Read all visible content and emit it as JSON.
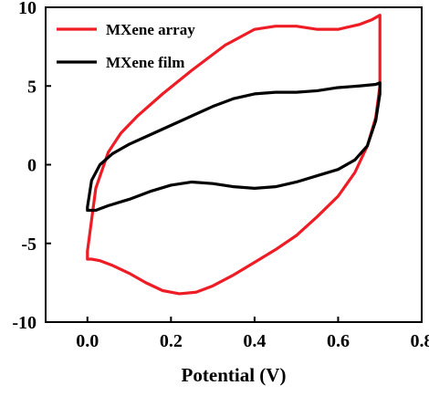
{
  "chart_data": {
    "type": "line",
    "title": "",
    "xlabel": "Potential (V)",
    "ylabel": "",
    "xlim": [
      -0.1,
      0.8
    ],
    "ylim": [
      -10,
      10
    ],
    "grid": false,
    "legend_position": "top-left",
    "x_ticks": [
      {
        "value": 0.0,
        "label": "0.0"
      },
      {
        "value": 0.2,
        "label": "0.2"
      },
      {
        "value": 0.4,
        "label": "0.4"
      },
      {
        "value": 0.6,
        "label": "0.6"
      },
      {
        "value": 0.8,
        "label": "0.8"
      }
    ],
    "y_ticks": [
      {
        "value": 10,
        "label": "10"
      },
      {
        "value": 5,
        "label": "5"
      },
      {
        "value": 0,
        "label": "0"
      },
      {
        "value": -5,
        "label": "-5"
      },
      {
        "value": -10,
        "label": "-10"
      }
    ],
    "series": [
      {
        "name": "MXene array",
        "color": "#ee1c25",
        "closed": true,
        "x": [
          0.0,
          0.02,
          0.05,
          0.08,
          0.12,
          0.18,
          0.25,
          0.33,
          0.4,
          0.45,
          0.5,
          0.55,
          0.6,
          0.65,
          0.68,
          0.7,
          0.7,
          0.7,
          0.69,
          0.67,
          0.64,
          0.6,
          0.55,
          0.5,
          0.45,
          0.4,
          0.35,
          0.3,
          0.26,
          0.22,
          0.18,
          0.14,
          0.1,
          0.06,
          0.03,
          0.01,
          0.0,
          0.0
        ],
        "y": [
          -5.5,
          -1.5,
          0.8,
          2.0,
          3.1,
          4.5,
          6.0,
          7.6,
          8.6,
          8.8,
          8.8,
          8.6,
          8.6,
          8.9,
          9.2,
          9.5,
          7.5,
          5.0,
          3.0,
          1.2,
          -0.5,
          -2.0,
          -3.3,
          -4.5,
          -5.4,
          -6.2,
          -7.0,
          -7.7,
          -8.1,
          -8.2,
          -8.0,
          -7.5,
          -6.9,
          -6.4,
          -6.1,
          -6.0,
          -6.0,
          -5.5
        ]
      },
      {
        "name": "MXene film",
        "color": "#000000",
        "closed": true,
        "x": [
          0.0,
          0.01,
          0.03,
          0.06,
          0.1,
          0.15,
          0.2,
          0.25,
          0.3,
          0.35,
          0.4,
          0.45,
          0.5,
          0.55,
          0.6,
          0.65,
          0.69,
          0.7,
          0.7,
          0.69,
          0.67,
          0.64,
          0.6,
          0.55,
          0.5,
          0.45,
          0.4,
          0.35,
          0.3,
          0.25,
          0.2,
          0.15,
          0.1,
          0.05,
          0.02,
          0.0,
          0.0
        ],
        "y": [
          -2.7,
          -1.0,
          0.0,
          0.7,
          1.3,
          1.9,
          2.5,
          3.1,
          3.7,
          4.2,
          4.5,
          4.6,
          4.6,
          4.7,
          4.9,
          5.0,
          5.1,
          5.2,
          4.5,
          2.8,
          1.2,
          0.3,
          -0.3,
          -0.7,
          -1.1,
          -1.4,
          -1.5,
          -1.4,
          -1.2,
          -1.1,
          -1.3,
          -1.7,
          -2.2,
          -2.6,
          -2.9,
          -2.9,
          -2.7
        ]
      }
    ]
  }
}
